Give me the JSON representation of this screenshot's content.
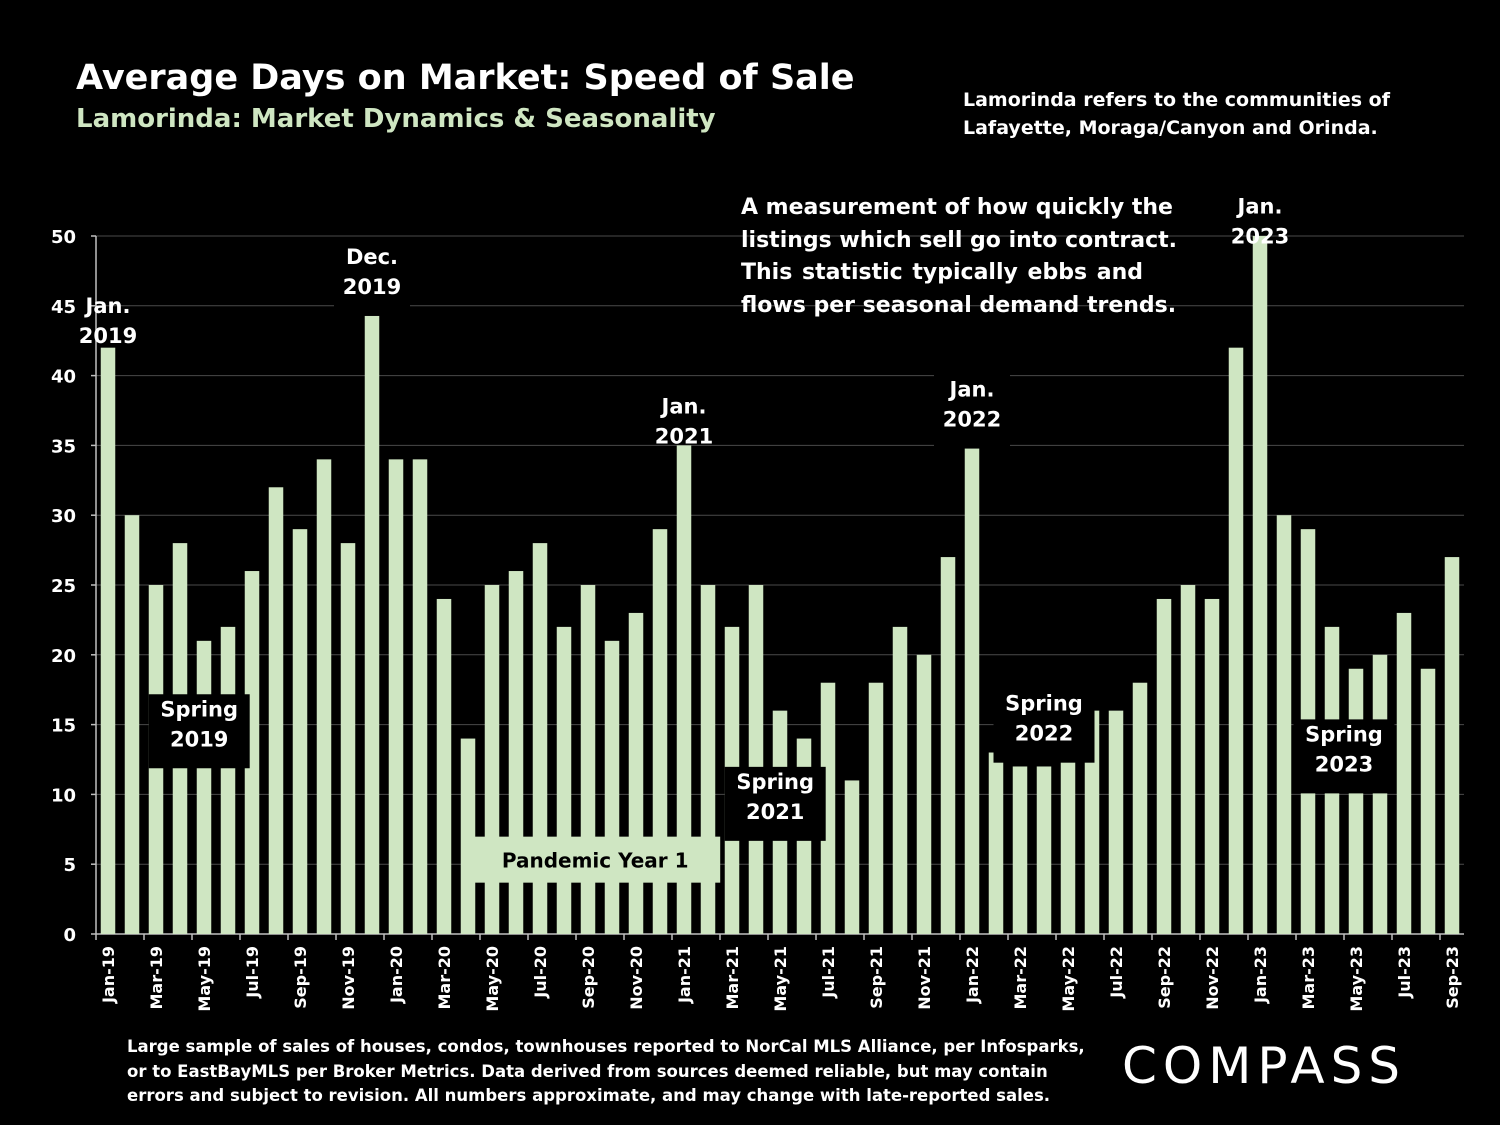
{
  "header": {
    "title": "Average Days on Market:  Speed of Sale",
    "subtitle": "Lamorinda: Market Dynamics & Seasonality"
  },
  "note": {
    "lines": [
      "Lamorinda refers to the communities of",
      "Lafayette, Moraga/Canyon and Orinda."
    ]
  },
  "callout": {
    "lines": [
      "A measurement of how quickly the",
      "listings which sell go into contract.",
      "This statistic typically ebbs and",
      "flows per seasonal demand trends."
    ]
  },
  "footer": {
    "lines": [
      "Large sample of sales of houses, condos, townhouses reported to NorCal MLS Alliance, per Infosparks,",
      "or to EastBayMLS per Broker Metrics. Data derived from sources deemed reliable, but may contain",
      "errors and subject to revision. All numbers approximate, and may change with late-reported sales."
    ]
  },
  "logo": {
    "text": "COMPASS"
  },
  "colors": {
    "background": "#000000",
    "bar": "#cfe6c2",
    "grid": "#4a4a4a",
    "text": "#ffffff"
  },
  "chart_data": {
    "type": "bar",
    "ylim": [
      0,
      50
    ],
    "yticks": [
      0,
      5,
      10,
      15,
      20,
      25,
      30,
      35,
      40,
      45,
      50
    ],
    "grid": true,
    "categories": [
      "Jan-19",
      "Feb-19",
      "Mar-19",
      "Apr-19",
      "May-19",
      "Jun-19",
      "Jul-19",
      "Aug-19",
      "Sep-19",
      "Oct-19",
      "Nov-19",
      "Dec-19",
      "Jan-20",
      "Feb-20",
      "Mar-20",
      "Apr-20",
      "May-20",
      "Jun-20",
      "Jul-20",
      "Aug-20",
      "Sep-20",
      "Oct-20",
      "Nov-20",
      "Dec-20",
      "Jan-21",
      "Feb-21",
      "Mar-21",
      "Apr-21",
      "May-21",
      "Jun-21",
      "Jul-21",
      "Aug-21",
      "Sep-21",
      "Oct-21",
      "Nov-21",
      "Dec-21",
      "Jan-22",
      "Feb-22",
      "Mar-22",
      "Apr-22",
      "May-22",
      "Jun-22",
      "Jul-22",
      "Aug-22",
      "Sep-22",
      "Oct-22",
      "Nov-22",
      "Dec-22",
      "Jan-23",
      "Feb-23",
      "Mar-23",
      "Apr-23",
      "May-23",
      "Jun-23",
      "Jul-23",
      "Aug-23",
      "Sep-23"
    ],
    "tick_labels": [
      "Jan-19",
      "",
      "Mar-19",
      "",
      "May-19",
      "",
      "Jul-19",
      "",
      "Sep-19",
      "",
      "Nov-19",
      "",
      "Jan-20",
      "",
      "Mar-20",
      "",
      "May-20",
      "",
      "Jul-20",
      "",
      "Sep-20",
      "",
      "Nov-20",
      "",
      "Jan-21",
      "",
      "Mar-21",
      "",
      "May-21",
      "",
      "Jul-21",
      "",
      "Sep-21",
      "",
      "Nov-21",
      "",
      "Jan-22",
      "",
      "Mar-22",
      "",
      "May-22",
      "",
      "Jul-22",
      "",
      "Sep-22",
      "",
      "Nov-22",
      "",
      "Jan-23",
      "",
      "Mar-23",
      "",
      "May-23",
      "",
      "Jul-23",
      "",
      "Sep-23"
    ],
    "values": [
      42,
      30,
      25,
      28,
      21,
      22,
      26,
      32,
      29,
      34,
      28,
      46,
      34,
      34,
      24,
      14,
      25,
      26,
      28,
      22,
      25,
      21,
      23,
      29,
      35,
      25,
      22,
      25,
      16,
      14,
      18,
      11,
      18,
      22,
      20,
      27,
      36,
      13,
      12,
      12,
      13,
      16,
      16,
      18,
      24,
      25,
      24,
      42,
      50,
      30,
      29,
      22,
      19,
      20,
      23,
      19,
      27
    ],
    "annotations": [
      {
        "lines": [
          "Jan.",
          "2019"
        ],
        "index": 0,
        "y": 45.5,
        "boxed": false
      },
      {
        "lines": [
          "Dec.",
          "2019"
        ],
        "index": 11,
        "y": 49.0,
        "boxed": true
      },
      {
        "lines": [
          "Jan.",
          "2021"
        ],
        "index": 24,
        "y": 38.3,
        "boxed": false
      },
      {
        "lines": [
          "Jan.",
          "2022"
        ],
        "index": 36,
        "y": 39.5,
        "boxed": true
      },
      {
        "lines": [
          "Jan.",
          "2023"
        ],
        "index": 48,
        "y": 52.6,
        "boxed": false
      },
      {
        "lines": [
          "Spring",
          "2019"
        ],
        "index": 3.8,
        "y": 16.6,
        "boxed": true
      },
      {
        "lines": [
          "Spring",
          "2021"
        ],
        "index": 27.8,
        "y": 11.4,
        "boxed": true
      },
      {
        "lines": [
          "Spring",
          "2022"
        ],
        "index": 39,
        "y": 17.0,
        "boxed": true
      },
      {
        "lines": [
          "Spring",
          "2023"
        ],
        "index": 51.5,
        "y": 14.8,
        "boxed": true
      },
      {
        "lines": [
          "Pandemic Year 1"
        ],
        "index": 20.3,
        "y": 6.4,
        "boxed": true,
        "light": true
      }
    ]
  }
}
